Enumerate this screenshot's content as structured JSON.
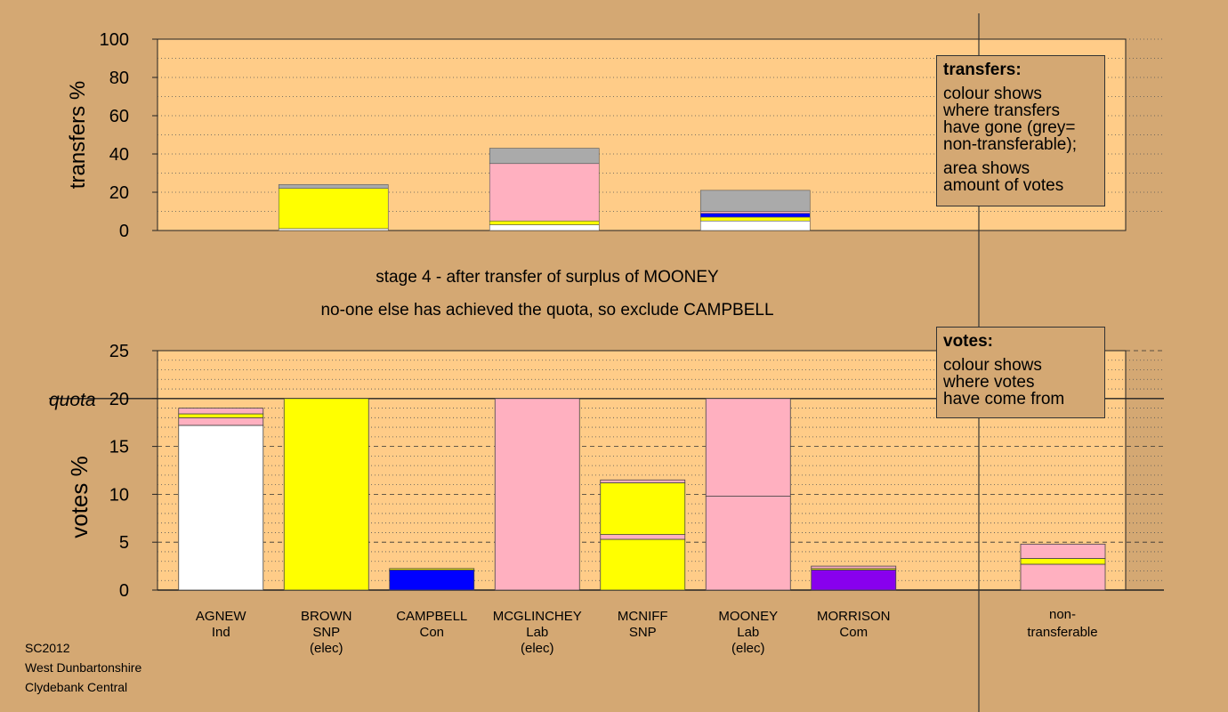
{
  "colors": {
    "background": "#d4a873",
    "plot_fill": "#ffcc88",
    "Ind": "#ffffff",
    "SNP": "#ffff00",
    "Con": "#0000ff",
    "Lab": "#ffb0c0",
    "Com": "#8800ee",
    "non_transferable": "#aaaaaa"
  },
  "captions": {
    "stage": "stage 4 - after transfer of surplus of MOONEY",
    "action": "no-one else has achieved the quota, so exclude CAMPBELL"
  },
  "legend_transfers": {
    "title": "transfers:",
    "lines": [
      "colour shows",
      "where transfers",
      "have gone (grey=",
      "non-transferable);"
    ],
    "lines2": [
      "area shows",
      "amount of votes"
    ]
  },
  "legend_votes": {
    "title": "votes:",
    "lines": [
      "colour shows",
      "where votes",
      "have come from"
    ]
  },
  "footer": {
    "line1": "SC2012",
    "line2": "West Dunbartonshire",
    "line3": "Clydebank Central"
  },
  "chart_data": [
    {
      "type": "bar",
      "title": "",
      "ylabel": "transfers %",
      "ylim": [
        0,
        100
      ],
      "yticks": [
        0,
        20,
        40,
        60,
        80,
        100
      ],
      "bars": [
        {
          "index": 1,
          "segments": [
            {
              "party": "Ind",
              "value": 1
            },
            {
              "party": "SNP",
              "value": 21
            },
            {
              "party": "non_transferable",
              "value": 2
            }
          ]
        },
        {
          "index": 3,
          "segments": [
            {
              "party": "Ind",
              "value": 3
            },
            {
              "party": "SNP",
              "value": 2
            },
            {
              "party": "Lab",
              "value": 30
            },
            {
              "party": "non_transferable",
              "value": 8
            }
          ]
        },
        {
          "index": 5,
          "segments": [
            {
              "party": "Ind",
              "value": 5
            },
            {
              "party": "SNP",
              "value": 2
            },
            {
              "party": "Con",
              "value": 2
            },
            {
              "party": "Lab",
              "value": 1
            },
            {
              "party": "non_transferable",
              "value": 11
            }
          ]
        }
      ]
    },
    {
      "type": "bar",
      "title": "",
      "ylabel": "votes %",
      "ylim": [
        0,
        25
      ],
      "yticks": [
        0,
        5,
        10,
        15,
        20,
        25
      ],
      "quota": 20,
      "quota_label": "quota",
      "categories": [
        {
          "name": "AGNEW",
          "party": "Ind",
          "note": ""
        },
        {
          "name": "BROWN",
          "party": "SNP",
          "note": "(elec)"
        },
        {
          "name": "CAMPBELL",
          "party": "Con",
          "note": ""
        },
        {
          "name": "MCGLINCHEY",
          "party": "Lab",
          "note": "(elec)"
        },
        {
          "name": "MCNIFF",
          "party": "SNP",
          "note": ""
        },
        {
          "name": "MOONEY",
          "party": "Lab",
          "note": "(elec)"
        },
        {
          "name": "MORRISON",
          "party": "Com",
          "note": ""
        }
      ],
      "nontransferable_label": [
        "non-",
        "transferable"
      ],
      "bars": [
        {
          "segments": [
            {
              "party": "Ind",
              "value": 17.2
            },
            {
              "party": "Lab",
              "value": 0.8
            },
            {
              "party": "SNP",
              "value": 0.4
            },
            {
              "party": "Lab",
              "value": 0.6
            }
          ]
        },
        {
          "segments": [
            {
              "party": "SNP",
              "value": 20
            }
          ]
        },
        {
          "segments": [
            {
              "party": "Con",
              "value": 2.1
            },
            {
              "party": "SNP",
              "value": 0.15
            }
          ]
        },
        {
          "segments": [
            {
              "party": "Lab",
              "value": 20
            }
          ]
        },
        {
          "segments": [
            {
              "party": "SNP",
              "value": 5.3
            },
            {
              "party": "Lab",
              "value": 0.5
            },
            {
              "party": "SNP",
              "value": 5.4
            },
            {
              "party": "Lab",
              "value": 0.3
            }
          ]
        },
        {
          "segments": [
            {
              "party": "Lab",
              "value": 9.8
            },
            {
              "party": "Lab",
              "value": 10.2
            }
          ]
        },
        {
          "segments": [
            {
              "party": "Com",
              "value": 2.1
            },
            {
              "party": "SNP",
              "value": 0.15
            },
            {
              "party": "Lab",
              "value": 0.25
            }
          ]
        }
      ],
      "nontransferable": {
        "segments": [
          {
            "party": "Lab",
            "value": 2.7
          },
          {
            "party": "SNP",
            "value": 0.6
          },
          {
            "party": "Lab",
            "value": 1.5
          }
        ]
      }
    }
  ]
}
